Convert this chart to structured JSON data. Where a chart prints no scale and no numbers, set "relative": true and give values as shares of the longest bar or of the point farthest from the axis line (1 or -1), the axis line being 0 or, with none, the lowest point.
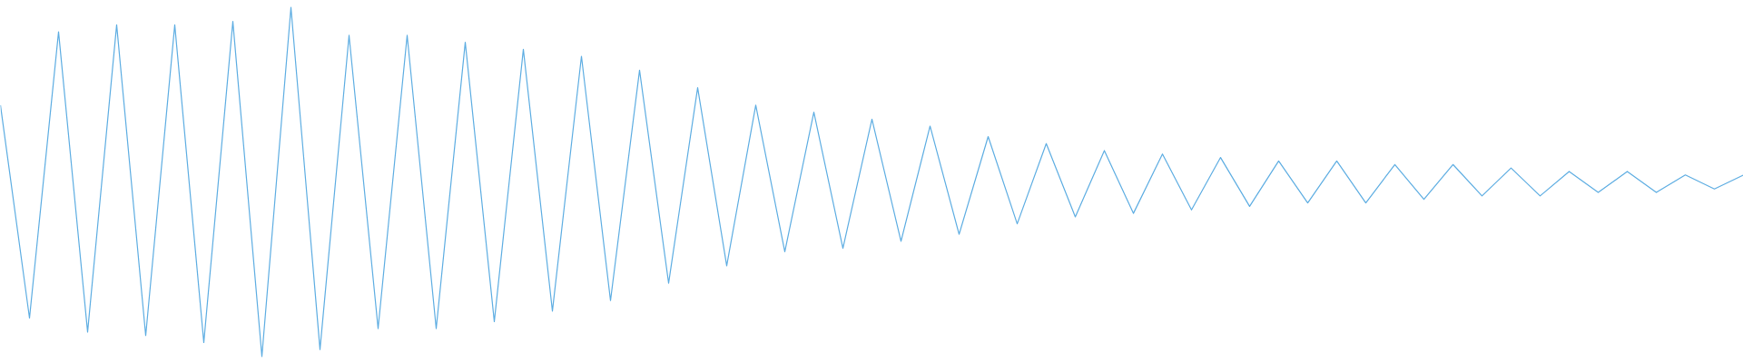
{
  "chart_data": {
    "type": "line",
    "relative": true,
    "color": "#5dade2",
    "categories": [
      null,
      null,
      null,
      null,
      null,
      null,
      null,
      null,
      null,
      null,
      null,
      null,
      null,
      null,
      null,
      null,
      null,
      null,
      null,
      null,
      null,
      null,
      null,
      null,
      null,
      null,
      null,
      null,
      null,
      null,
      null,
      null,
      null,
      null,
      null,
      null,
      null,
      null,
      null,
      null,
      null,
      null,
      null,
      null,
      null,
      null,
      null,
      null,
      null,
      null,
      null,
      null,
      null,
      null,
      null,
      null,
      null,
      null,
      null,
      null,
      null
    ],
    "values": [
      0.72,
      0.11,
      0.93,
      0.07,
      0.95,
      0.06,
      0.95,
      0.04,
      0.96,
      0,
      1,
      0.02,
      0.92,
      0.08,
      0.92,
      0.08,
      0.9,
      0.1,
      0.88,
      0.13,
      0.86,
      0.16,
      0.82,
      0.21,
      0.77,
      0.26,
      0.72,
      0.3,
      0.7,
      0.31,
      0.68,
      0.33,
      0.66,
      0.35,
      0.63,
      0.38,
      0.61,
      0.4,
      0.59,
      0.41,
      0.58,
      0.42,
      0.57,
      0.43,
      0.56,
      0.44,
      0.56,
      0.44,
      0.55,
      0.45,
      0.55,
      0.46,
      0.54,
      0.46,
      0.53,
      0.47,
      0.53,
      0.47,
      0.52,
      0.48,
      0.52
    ],
    "grid": false
  }
}
